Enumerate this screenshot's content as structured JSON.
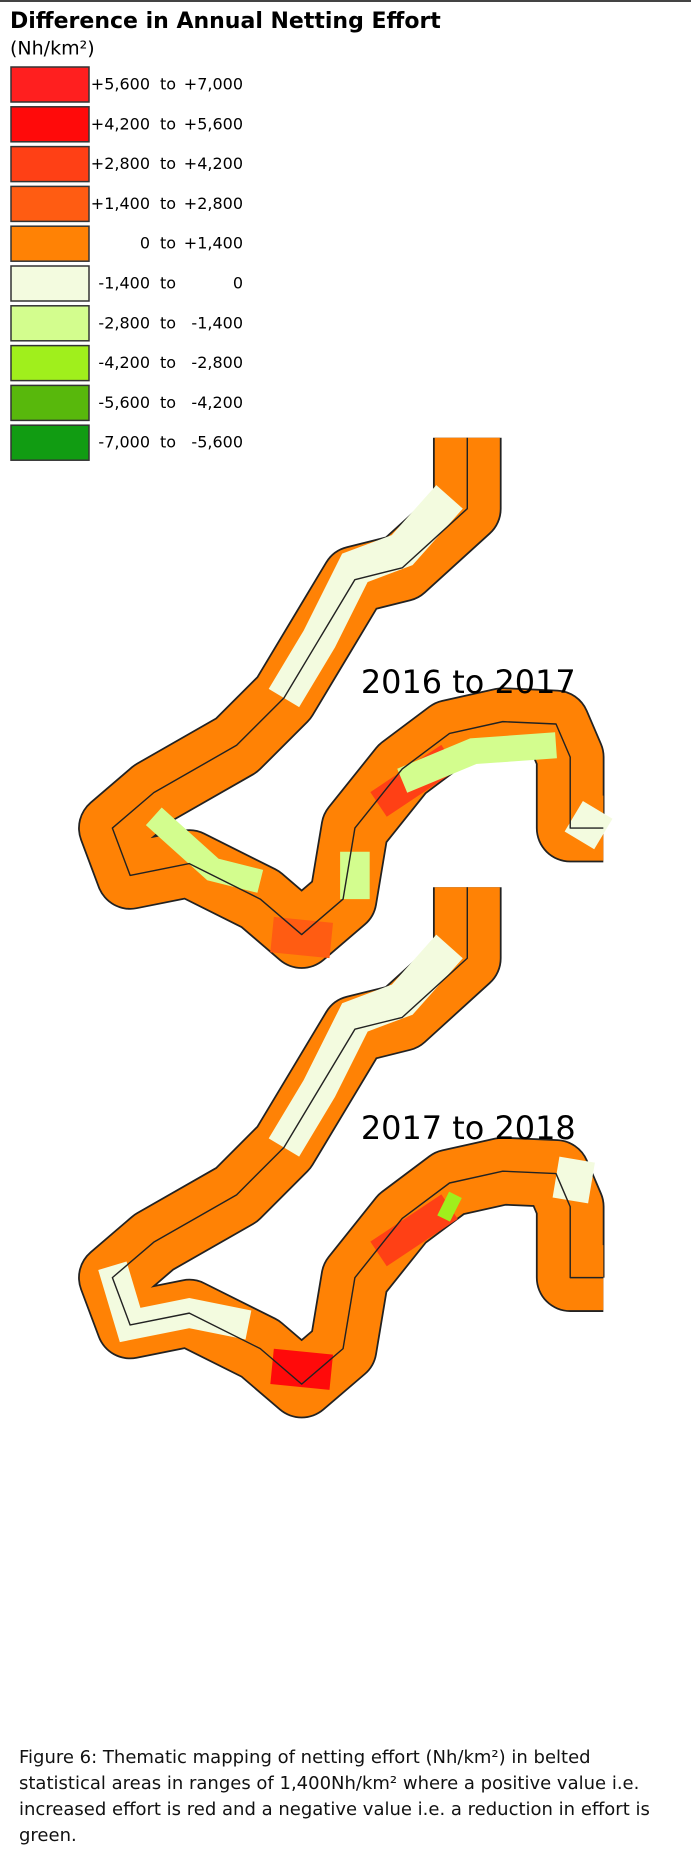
{
  "title": "Difference in Annual Netting Effort",
  "unit": "(Nh/km²)",
  "legend": {
    "separator": "to",
    "items": [
      {
        "from": "+5,600",
        "to": "+7,000",
        "color": "#ff1f1f"
      },
      {
        "from": "+4,200",
        "to": "+5,600",
        "color": "#ff0a0a"
      },
      {
        "from": "+2,800",
        "to": "+4,200",
        "color": "#ff4015"
      },
      {
        "from": "+1,400",
        "to": "+2,800",
        "color": "#ff5c12"
      },
      {
        "from": "0",
        "to": "+1,400",
        "color": "#ff8205"
      },
      {
        "from": "-1,400",
        "to": "0",
        "color": "#f3fbdf"
      },
      {
        "from": "-2,800",
        "to": "-1,400",
        "color": "#d3fd8e"
      },
      {
        "from": "-4,200",
        "to": "-2,800",
        "color": "#a0ef1c"
      },
      {
        "from": "-5,600",
        "to": "-4,200",
        "color": "#58b80c"
      },
      {
        "from": "-7,000",
        "to": "-5,600",
        "color": "#119c12"
      }
    ]
  },
  "maps": [
    {
      "label": "2016 to 2017"
    },
    {
      "label": "2017 to 2018"
    }
  ],
  "caption": "Figure 6: Thematic mapping of netting effort (Nh/km²) in belted statistical areas in ranges of 1,400Nh/km² where a positive value i.e. increased effort is red and a negative value i.e. a reduction in effort is green."
}
